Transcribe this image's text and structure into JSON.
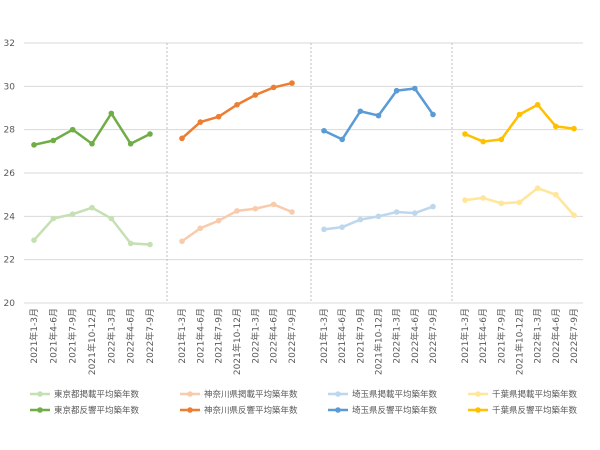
{
  "chart_data": {
    "type": "line",
    "ylim": [
      20,
      32
    ],
    "y_ticks": [
      "20",
      "22",
      "24",
      "26",
      "28",
      "30",
      "32"
    ],
    "grid": true,
    "legend_position": "bottom",
    "categories": [
      "2021年1-3月",
      "2021年4-6月",
      "2021年7-9月",
      "2021年10-12月",
      "2022年1-3月",
      "2022年4-6月",
      "2022年7-9月"
    ],
    "panels": [
      {
        "series": [
          {
            "name": "東京都掲載平均築年数",
            "color": "#c5e0b4",
            "values": [
              22.9,
              23.9,
              24.1,
              24.4,
              23.9,
              22.75,
              22.7
            ]
          },
          {
            "name": "東京都反響平均築年数",
            "color": "#70ad47",
            "values": [
              27.3,
              27.5,
              28.0,
              27.35,
              28.75,
              27.35,
              27.8
            ]
          }
        ]
      },
      {
        "series": [
          {
            "name": "神奈川県掲載平均築年数",
            "color": "#f8cbad",
            "values": [
              22.85,
              23.45,
              23.8,
              24.25,
              24.35,
              24.55,
              24.2
            ]
          },
          {
            "name": "神奈川県反響平均築年数",
            "color": "#ed7d31",
            "values": [
              27.6,
              28.35,
              28.6,
              29.15,
              29.6,
              29.95,
              30.15
            ]
          }
        ]
      },
      {
        "series": [
          {
            "name": "埼玉県掲載平均築年数",
            "color": "#bdd7ee",
            "values": [
              23.4,
              23.5,
              23.85,
              24.0,
              24.2,
              24.15,
              24.45
            ]
          },
          {
            "name": "埼玉県反響平均築年数",
            "color": "#5b9bd5",
            "values": [
              27.95,
              27.55,
              28.85,
              28.65,
              29.8,
              29.9,
              28.7
            ]
          }
        ]
      },
      {
        "series": [
          {
            "name": "千葉県掲載平均築年数",
            "color": "#ffe699",
            "values": [
              24.75,
              24.85,
              24.6,
              24.65,
              25.3,
              25.0,
              24.05
            ]
          },
          {
            "name": "千葉県反響平均築年数",
            "color": "#ffc000",
            "values": [
              27.8,
              27.45,
              27.55,
              28.7,
              29.15,
              28.15,
              28.05
            ]
          }
        ]
      }
    ]
  }
}
